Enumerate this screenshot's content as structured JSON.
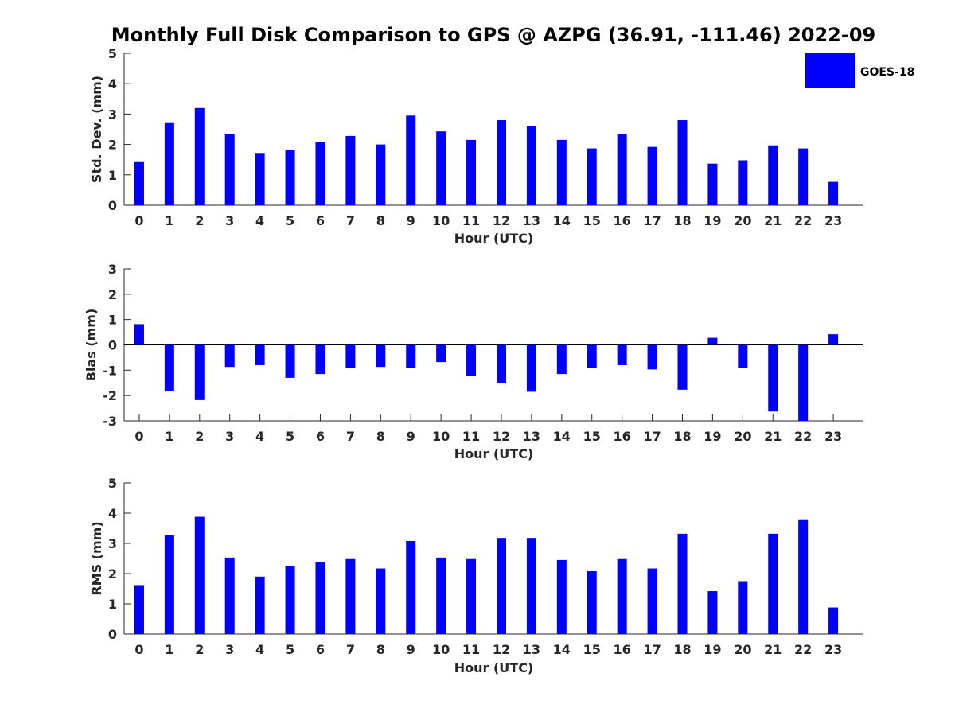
{
  "title": "Monthly Full Disk Comparison to GPS @ AZPG (36.91, -111.46) 2022-09",
  "legend": {
    "label": "GOES-18",
    "color": "#0000ff"
  },
  "chart_data": [
    {
      "type": "bar",
      "xlabel": "Hour (UTC)",
      "ylabel": "Std. Dev. (mm)",
      "ylim": [
        0,
        5
      ],
      "yticks": [
        "0",
        "1",
        "2",
        "3",
        "4",
        "5"
      ],
      "categories": [
        "0",
        "1",
        "2",
        "3",
        "4",
        "5",
        "6",
        "7",
        "8",
        "9",
        "10",
        "11",
        "12",
        "13",
        "14",
        "15",
        "16",
        "17",
        "18",
        "19",
        "20",
        "21",
        "22",
        "23"
      ],
      "series": [
        {
          "name": "GOES-18",
          "color": "#0000ff",
          "values": [
            1.42,
            2.73,
            3.2,
            2.35,
            1.72,
            1.82,
            2.08,
            2.28,
            2.0,
            2.95,
            2.43,
            2.15,
            2.8,
            2.6,
            2.15,
            1.87,
            2.35,
            1.92,
            2.8,
            1.37,
            1.48,
            1.97,
            1.87,
            0.77
          ]
        }
      ]
    },
    {
      "type": "bar",
      "xlabel": "Hour (UTC)",
      "ylabel": "Bias (mm)",
      "ylim": [
        -3,
        3
      ],
      "yticks": [
        "-3",
        "-2",
        "-1",
        "0",
        "1",
        "2",
        "3"
      ],
      "categories": [
        "0",
        "1",
        "2",
        "3",
        "4",
        "5",
        "6",
        "7",
        "8",
        "9",
        "10",
        "11",
        "12",
        "13",
        "14",
        "15",
        "16",
        "17",
        "18",
        "19",
        "20",
        "21",
        "22",
        "23"
      ],
      "series": [
        {
          "name": "GOES-18",
          "color": "#0000ff",
          "values": [
            0.82,
            -1.83,
            -2.18,
            -0.87,
            -0.8,
            -1.3,
            -1.15,
            -0.92,
            -0.87,
            -0.9,
            -0.68,
            -1.23,
            -1.52,
            -1.85,
            -1.15,
            -0.92,
            -0.8,
            -0.97,
            -1.77,
            0.28,
            -0.9,
            -2.63,
            -3.0,
            0.42
          ]
        }
      ]
    },
    {
      "type": "bar",
      "xlabel": "Hour (UTC)",
      "ylabel": "RMS (mm)",
      "ylim": [
        0,
        5
      ],
      "yticks": [
        "0",
        "1",
        "2",
        "3",
        "4",
        "5"
      ],
      "categories": [
        "0",
        "1",
        "2",
        "3",
        "4",
        "5",
        "6",
        "7",
        "8",
        "9",
        "10",
        "11",
        "12",
        "13",
        "14",
        "15",
        "16",
        "17",
        "18",
        "19",
        "20",
        "21",
        "22",
        "23"
      ],
      "series": [
        {
          "name": "GOES-18",
          "color": "#0000ff",
          "values": [
            1.62,
            3.28,
            3.88,
            2.53,
            1.9,
            2.25,
            2.37,
            2.48,
            2.17,
            3.08,
            2.53,
            2.48,
            3.18,
            3.18,
            2.45,
            2.08,
            2.48,
            2.17,
            3.32,
            1.42,
            1.75,
            3.32,
            3.77,
            0.88
          ]
        }
      ]
    }
  ]
}
